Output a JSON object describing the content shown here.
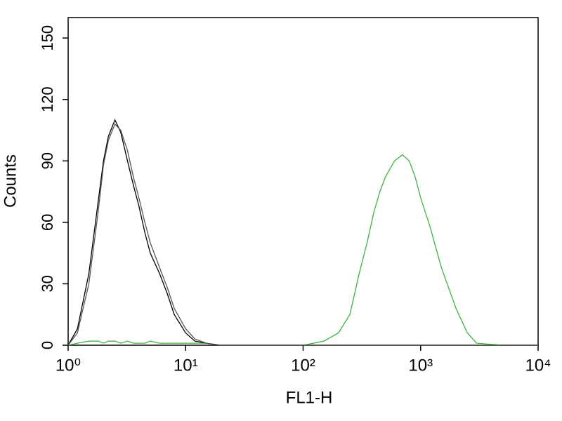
{
  "chart_data": {
    "type": "line",
    "x_label": "FL1-H",
    "y_label": "Counts",
    "xscale": "log",
    "xlim": [
      1,
      10000
    ],
    "xticks": [
      {
        "value": 1,
        "label": "10⁰"
      },
      {
        "value": 10,
        "label": "10¹"
      },
      {
        "value": 100,
        "label": "10²"
      },
      {
        "value": 1000,
        "label": "10³"
      },
      {
        "value": 10000,
        "label": "10⁴"
      }
    ],
    "ylim": [
      0,
      160
    ],
    "yticks": [
      0,
      30,
      60,
      90,
      120,
      150
    ],
    "x": [
      1,
      1.2,
      1.5,
      1.8,
      2,
      2.2,
      2.5,
      2.8,
      3.2,
      3.6,
      4,
      4.5,
      5,
      6,
      7,
      8,
      10,
      12,
      15,
      20,
      30,
      50,
      100,
      150,
      200,
      250,
      300,
      350,
      400,
      450,
      500,
      600,
      700,
      800,
      900,
      1000,
      1200,
      1500,
      2000,
      2500,
      3000,
      5000,
      10000
    ],
    "series": [
      {
        "color": "#3fb23f",
        "values": [
          0,
          1,
          2,
          2,
          1,
          2,
          2,
          1,
          2,
          1,
          1,
          1,
          2,
          1,
          1,
          1,
          1,
          1,
          1,
          0,
          0,
          0,
          0,
          2,
          6,
          15,
          35,
          50,
          65,
          75,
          82,
          90,
          93,
          90,
          82,
          72,
          58,
          38,
          18,
          6,
          1,
          0,
          0
        ]
      },
      {
        "color": "#000000",
        "values": [
          0,
          8,
          35,
          70,
          90,
          102,
          110,
          104,
          90,
          78,
          68,
          55,
          45,
          35,
          25,
          15,
          6,
          2,
          1,
          0,
          0,
          0,
          0,
          0,
          0,
          0,
          0,
          0,
          0,
          0,
          0,
          0,
          0,
          0,
          0,
          0,
          0,
          0,
          0,
          0,
          0,
          0,
          0
        ]
      },
      {
        "color": "#555555",
        "values": [
          0,
          6,
          30,
          65,
          88,
          100,
          108,
          105,
          95,
          82,
          72,
          60,
          50,
          38,
          28,
          18,
          8,
          3,
          1,
          0,
          0,
          0,
          0,
          0,
          0,
          0,
          0,
          0,
          0,
          0,
          0,
          0,
          0,
          0,
          0,
          0,
          0,
          0,
          0,
          0,
          0,
          0,
          0
        ]
      }
    ]
  }
}
